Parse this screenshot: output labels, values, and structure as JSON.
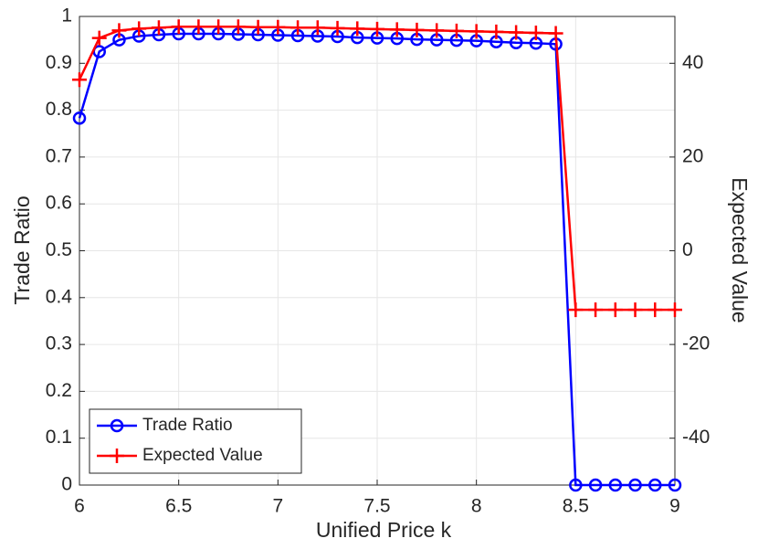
{
  "chart_data": {
    "type": "line",
    "xlabel": "Unified Price k",
    "ylabel": "Trade Ratio",
    "y2label": "Expected Value",
    "x": [
      6.0,
      6.1,
      6.2,
      6.3,
      6.4,
      6.5,
      6.6,
      6.7,
      6.8,
      6.9,
      7.0,
      7.1,
      7.2,
      7.3,
      7.4,
      7.5,
      7.6,
      7.7,
      7.8,
      7.9,
      8.0,
      8.1,
      8.2,
      8.3,
      8.4,
      8.5,
      8.6,
      8.7,
      8.8,
      8.9,
      9.0
    ],
    "series": [
      {
        "name": "Trade Ratio",
        "color": "#0000ff",
        "marker": "circle",
        "values": [
          0.783,
          0.925,
          0.95,
          0.958,
          0.961,
          0.963,
          0.963,
          0.963,
          0.962,
          0.961,
          0.96,
          0.959,
          0.958,
          0.957,
          0.955,
          0.954,
          0.953,
          0.951,
          0.95,
          0.949,
          0.948,
          0.946,
          0.944,
          0.943,
          0.941,
          0,
          0,
          0,
          0,
          0,
          0
        ]
      },
      {
        "name": "Expected Value",
        "color": "#ff0000",
        "marker": "plus",
        "axis": "y2",
        "values": [
          36.5,
          45.4,
          47.0,
          47.4,
          47.6,
          47.8,
          47.8,
          47.8,
          47.8,
          47.7,
          47.7,
          47.6,
          47.6,
          47.5,
          47.4,
          47.3,
          47.2,
          47.1,
          47.0,
          46.9,
          46.8,
          46.7,
          46.6,
          46.5,
          46.4,
          -12.6,
          -12.6,
          -12.6,
          -12.6,
          -12.6,
          -12.6
        ]
      }
    ],
    "xlim": [
      6,
      9
    ],
    "xticks": [
      6,
      6.5,
      7,
      7.5,
      8,
      8.5,
      9
    ],
    "ylim": [
      0,
      1
    ],
    "yticks": [
      0,
      0.1,
      0.2,
      0.3,
      0.4,
      0.5,
      0.6,
      0.7,
      0.8,
      0.9,
      1
    ],
    "y2lim": [
      -50,
      50
    ],
    "y2ticks": [
      -40,
      -20,
      0,
      20,
      40
    ],
    "grid": true,
    "legend": "lower-left"
  }
}
